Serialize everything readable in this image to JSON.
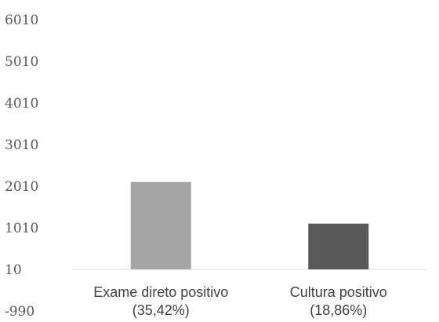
{
  "chart_data": {
    "type": "bar",
    "title": "",
    "xlabel": "",
    "ylabel": "",
    "categories": [
      [
        "Exame direto positivo",
        "(35,42%)"
      ],
      [
        "Cultura positivo",
        "(18,86%)"
      ]
    ],
    "values": [
      2110,
      1110
    ],
    "bar_colors": [
      "#a5a5a5",
      "#595959"
    ],
    "ylim": [
      -990,
      6010
    ],
    "yticks": [
      "6010",
      "5010",
      "4010",
      "3010",
      "2010",
      "1010",
      "10",
      "-990"
    ],
    "ytick_values": [
      6010,
      5010,
      4010,
      3010,
      2010,
      1010,
      10,
      -990
    ],
    "baseline": 10,
    "grid": false,
    "legend": "none"
  }
}
